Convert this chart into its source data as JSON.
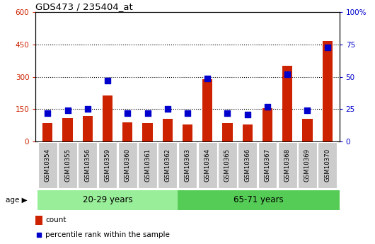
{
  "title": "GDS473 / 235404_at",
  "categories": [
    "GSM10354",
    "GSM10355",
    "GSM10356",
    "GSM10359",
    "GSM10360",
    "GSM10361",
    "GSM10362",
    "GSM10363",
    "GSM10364",
    "GSM10365",
    "GSM10366",
    "GSM10367",
    "GSM10368",
    "GSM10369",
    "GSM10370"
  ],
  "count_values": [
    85,
    110,
    120,
    215,
    90,
    85,
    105,
    80,
    290,
    85,
    80,
    155,
    350,
    105,
    465
  ],
  "percentile_values": [
    22,
    24,
    25,
    47,
    22,
    22,
    25,
    22,
    49,
    22,
    21,
    27,
    52,
    24,
    73
  ],
  "group1_label": "20-29 years",
  "group2_label": "65-71 years",
  "group1_count": 7,
  "group2_count": 8,
  "bar_color": "#cc2200",
  "dot_color": "#0000cc",
  "group1_bg": "#99ee99",
  "group2_bg": "#55cc55",
  "tick_bg": "#cccccc",
  "ylim_left": [
    0,
    600
  ],
  "ylim_right": [
    0,
    100
  ],
  "yticks_left": [
    0,
    150,
    300,
    450,
    600
  ],
  "yticks_right": [
    0,
    25,
    50,
    75,
    100
  ],
  "legend_count_label": "count",
  "legend_pct_label": "percentile rank within the sample",
  "age_label": "age",
  "bar_width": 0.5
}
